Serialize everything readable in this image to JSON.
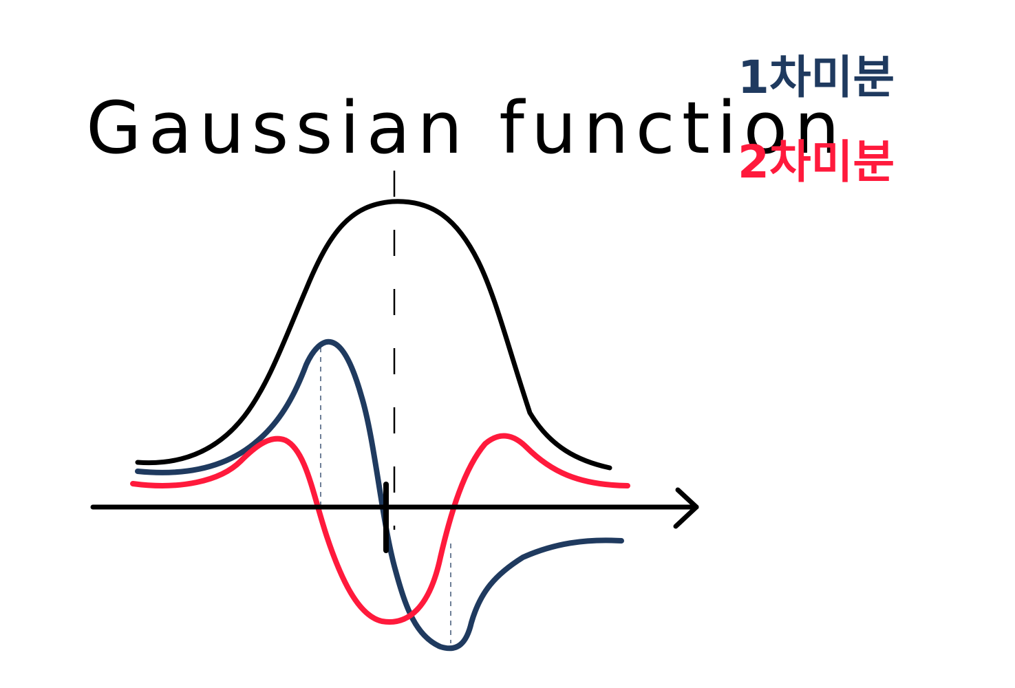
{
  "title": "Gaussian function",
  "legend": [
    {
      "label": "1차미분",
      "color": "#1f3a5f"
    },
    {
      "label": "2차미분",
      "color": "#ff1a3c"
    }
  ],
  "colors": {
    "gaussian": "#000000",
    "first_derivative": "#1f3a5f",
    "second_derivative": "#ff1a3c",
    "axis": "#000000",
    "guide": "#000000"
  },
  "curves": [
    {
      "id": "gaussian",
      "color_key": "gaussian",
      "description": "bell curve"
    },
    {
      "id": "first_derivative",
      "color_key": "first_derivative"
    },
    {
      "id": "second_derivative",
      "color_key": "second_derivative"
    }
  ],
  "icons": {
    "axis_arrow": "arrow-right-icon"
  }
}
